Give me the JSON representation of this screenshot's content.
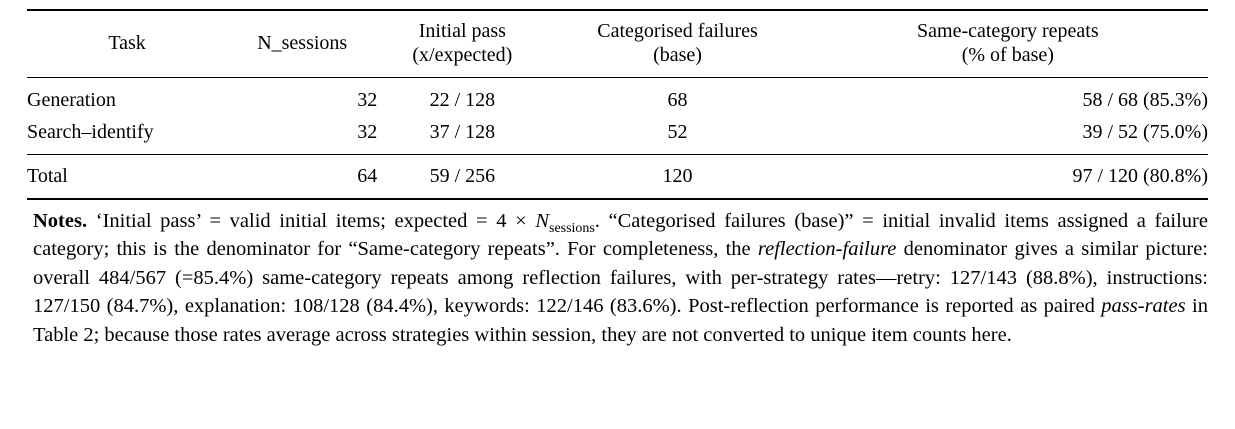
{
  "table": {
    "headers": {
      "task": "Task",
      "n_sessions": "N_sessions",
      "initial_pass_line1": "Initial pass",
      "initial_pass_line2": "(x/expected)",
      "categorised_failures_line1": "Categorised failures",
      "categorised_failures_line2": "(base)",
      "repeats_line1": "Same-category repeats",
      "repeats_line2": "(% of base)"
    },
    "rows": [
      {
        "task": "Generation",
        "n_sessions": "32",
        "initial_pass": "22 / 128",
        "categorised_failures": "68",
        "same_category_repeats": "58 / 68 (85.3%)"
      },
      {
        "task": "Search–identify",
        "n_sessions": "32",
        "initial_pass": "37 / 128",
        "categorised_failures": "52",
        "same_category_repeats": "39 / 52 (75.0%)"
      }
    ],
    "total": {
      "task": "Total",
      "n_sessions": "64",
      "initial_pass": "59 / 256",
      "categorised_failures": "120",
      "same_category_repeats": "97 / 120 (80.8%)"
    }
  },
  "notes": {
    "label": "Notes.",
    "seg1": " ‘Initial pass’ = valid initial items; expected = 4 × ",
    "nvar": "N",
    "nsub": "sessions",
    "seg2": ". “Categorised failures (base)” = initial invalid items assigned a failure category; this is the denominator for “Same-category repeats”. For completeness, the ",
    "seg3": "reflection-failure",
    "seg4": " denominator gives a similar picture: overall 484/567 (=85.4%) same-category repeats among reflection failures, with per-strategy rates—retry: 127/143 (88.8%), instructions: 127/150 (84.7%), explanation: 108/128 (84.4%), keywords: 122/146 (83.6%). Post-reflection performance is reported as paired ",
    "seg5": "pass-rates",
    "seg6": " in Table 2; because those rates average across strategies within session, they are not converted to unique item counts here."
  }
}
